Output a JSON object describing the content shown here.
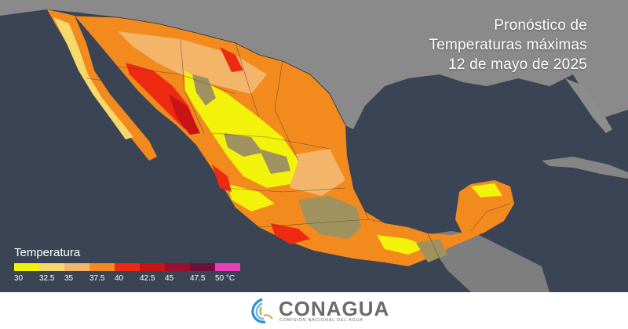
{
  "title": {
    "line1": "Pronóstico de",
    "line2": "Temperaturas máximas",
    "line3": "12 de mayo de 2025"
  },
  "legend": {
    "title": "Temperatura",
    "ticks": [
      "30",
      "32.5",
      "35",
      "37.5",
      "40",
      "42.5",
      "45",
      "47.5",
      "50 °C"
    ],
    "colors": [
      "#f2f20a",
      "#f7d86a",
      "#f3b56a",
      "#f28a1e",
      "#ee2a12",
      "#c81414",
      "#9b1030",
      "#6e0f3c",
      "#e83cb8"
    ]
  },
  "colors": {
    "ocean": "#3b4454",
    "land_background": "#8a8a8a",
    "cool_highlands": "#a0925e",
    "footer_text": "#6b6b6b"
  },
  "footer": {
    "brand": "CONAGUA",
    "subtitle": "COMISIÓN NACIONAL DEL AGUA"
  }
}
